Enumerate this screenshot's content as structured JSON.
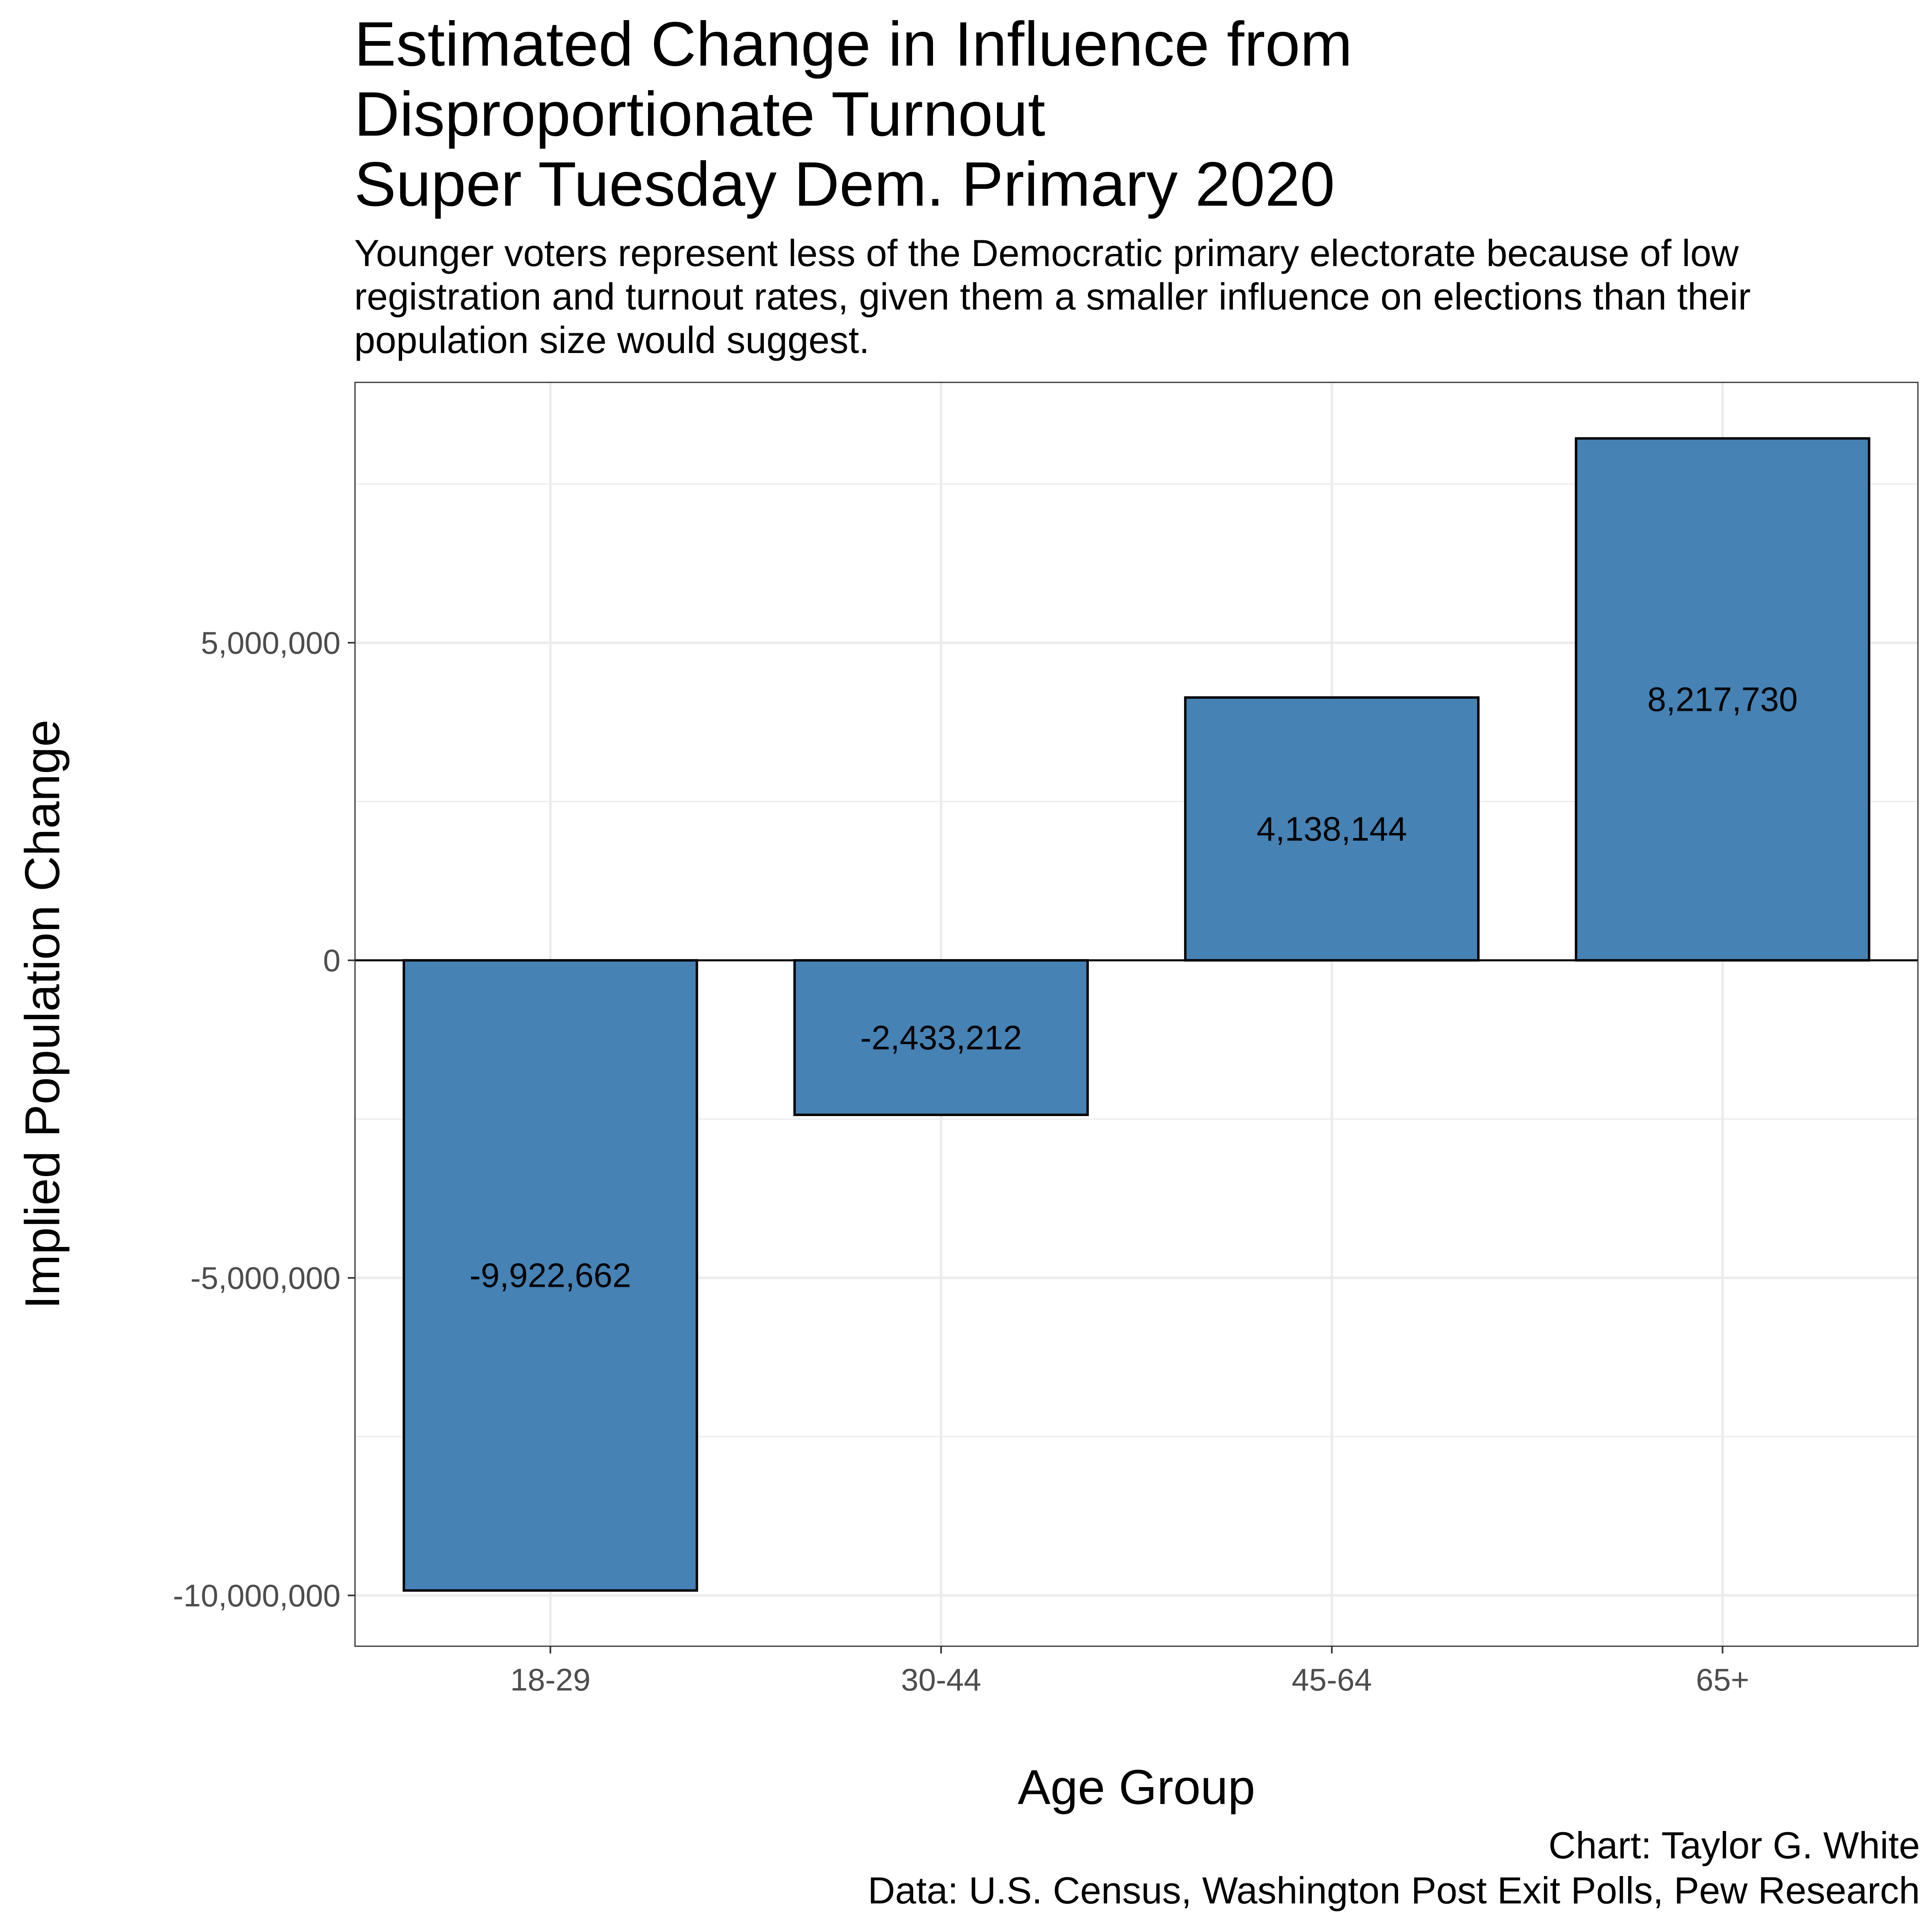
{
  "title_lines": [
    "Estimated Change in Influence from",
    "Disproportionate Turnout",
    "Super Tuesday Dem. Primary 2020"
  ],
  "subtitle_lines": [
    "Younger voters represent less of the Democratic primary electorate because of low",
    "registration and turnout rates, given them a smaller influence on elections than their",
    "population size would suggest."
  ],
  "caption_lines": [
    "Chart: Taylor G. White",
    "Data: U.S. Census, Washington Post Exit Polls, Pew Research"
  ],
  "chart_data": {
    "type": "bar",
    "categories": [
      "18-29",
      "30-44",
      "45-64",
      "65+"
    ],
    "values": [
      -9922662,
      -2433212,
      4138144,
      8217730
    ],
    "data_labels": [
      "-9,922,662",
      "-2,433,212",
      "4,138,144",
      "8,217,730"
    ],
    "xlabel": "Age Group",
    "ylabel": "Implied Population Change",
    "ylim": [
      -10800000,
      9100000
    ],
    "y_ticks": [
      5000000,
      0,
      -5000000,
      -10000000
    ],
    "y_tick_labels": [
      "5,000,000",
      "0",
      "-5,000,000",
      "-10,000,000"
    ],
    "y_minor_ticks": [
      7500000,
      2500000,
      -2500000,
      -7500000
    ],
    "grid": true,
    "zero_line": true,
    "colors": {
      "bar_fill": "#4682B4",
      "bar_stroke": "#000000",
      "grid": "#EBEBEB",
      "panel_border": "#333333",
      "tick_text": "#4D4D4D"
    }
  }
}
